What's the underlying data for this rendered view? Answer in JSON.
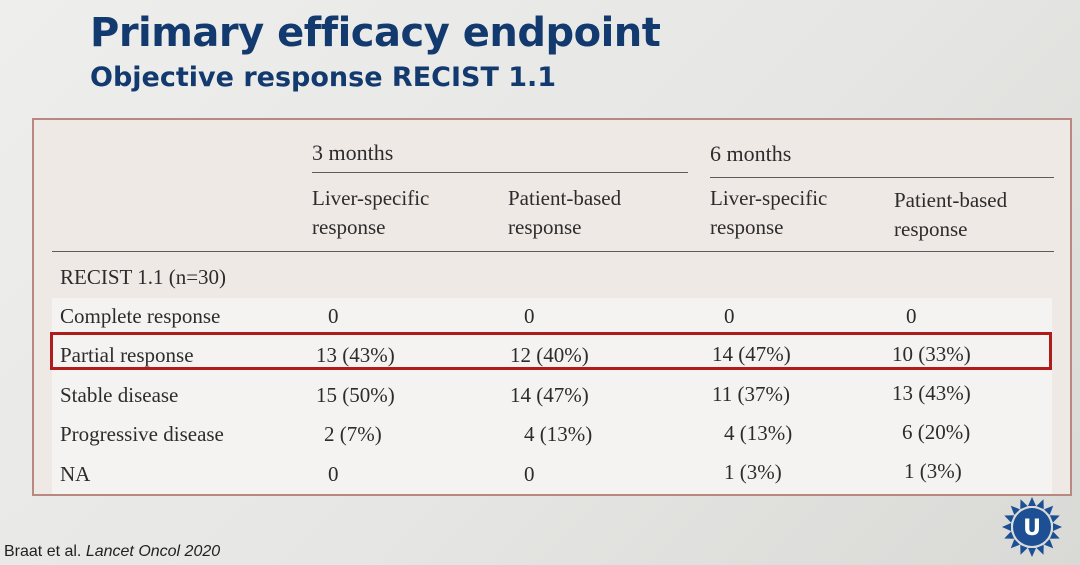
{
  "slide": {
    "title": "Primary efficacy endpoint",
    "subtitle": "Objective response RECIST 1.1",
    "citation_authors": "Braat et al. ",
    "citation_journal": "Lancet Oncol 2020",
    "logo_letter": "U"
  },
  "table": {
    "groups": [
      "3 months",
      "6 months"
    ],
    "subheaders": [
      [
        "Liver-specific",
        "response"
      ],
      [
        "Patient-based",
        "response"
      ],
      [
        "Liver-specific",
        "response"
      ],
      [
        "Patient-based",
        "response"
      ]
    ],
    "section_label": "RECIST 1.1 (n=30)",
    "rows": [
      {
        "label": "Complete response",
        "values": [
          "0",
          "0",
          "0",
          "0"
        ]
      },
      {
        "label": "Partial response",
        "values": [
          "13 (43%)",
          "12 (40%)",
          "14 (47%)",
          "10 (33%)"
        ]
      },
      {
        "label": "Stable disease",
        "values": [
          "15 (50%)",
          "14 (47%)",
          "11 (37%)",
          "13 (43%)"
        ]
      },
      {
        "label": "Progressive disease",
        "values": [
          "2 (7%)",
          "4 (13%)",
          "4 (13%)",
          "6 (20%)"
        ]
      },
      {
        "label": "NA",
        "values": [
          "0",
          "0",
          "1 (3%)",
          "1 (3%)"
        ]
      }
    ]
  },
  "colors": {
    "title": "#123a6e",
    "highlight_box": "#b01c1c",
    "table_border": "#b98880",
    "logo": "#1d4f94"
  }
}
